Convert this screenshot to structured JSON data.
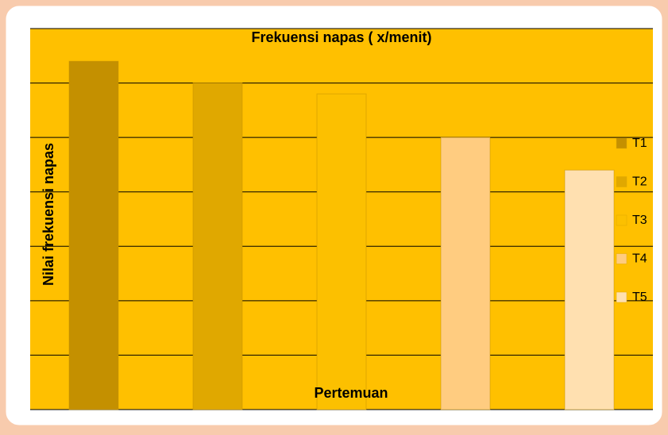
{
  "chart_data": {
    "type": "bar",
    "title": "Frekuensi napas ( x/menit)",
    "x_label": "Pertemuan",
    "y_label": "Nilai frekuensi napas",
    "categories": [
      null
    ],
    "series": [
      {
        "name": "T1",
        "color": "#c49000",
        "values": [
          6.4
        ]
      },
      {
        "name": "T2",
        "color": "#e0a800",
        "values": [
          6.0
        ]
      },
      {
        "name": "T3",
        "color": "#fcc000",
        "values": [
          5.8
        ]
      },
      {
        "name": "T4",
        "color": "#ffcc80",
        "values": [
          5.0
        ]
      },
      {
        "name": "T5",
        "color": "#ffe0b0",
        "values": [
          4.4
        ]
      }
    ],
    "ylim": [
      0,
      7
    ],
    "yticks": [
      0,
      1,
      2,
      3,
      4,
      5,
      6,
      7
    ],
    "grid": true,
    "tick_labels": false,
    "legend": "right",
    "background": "#ffc000"
  }
}
